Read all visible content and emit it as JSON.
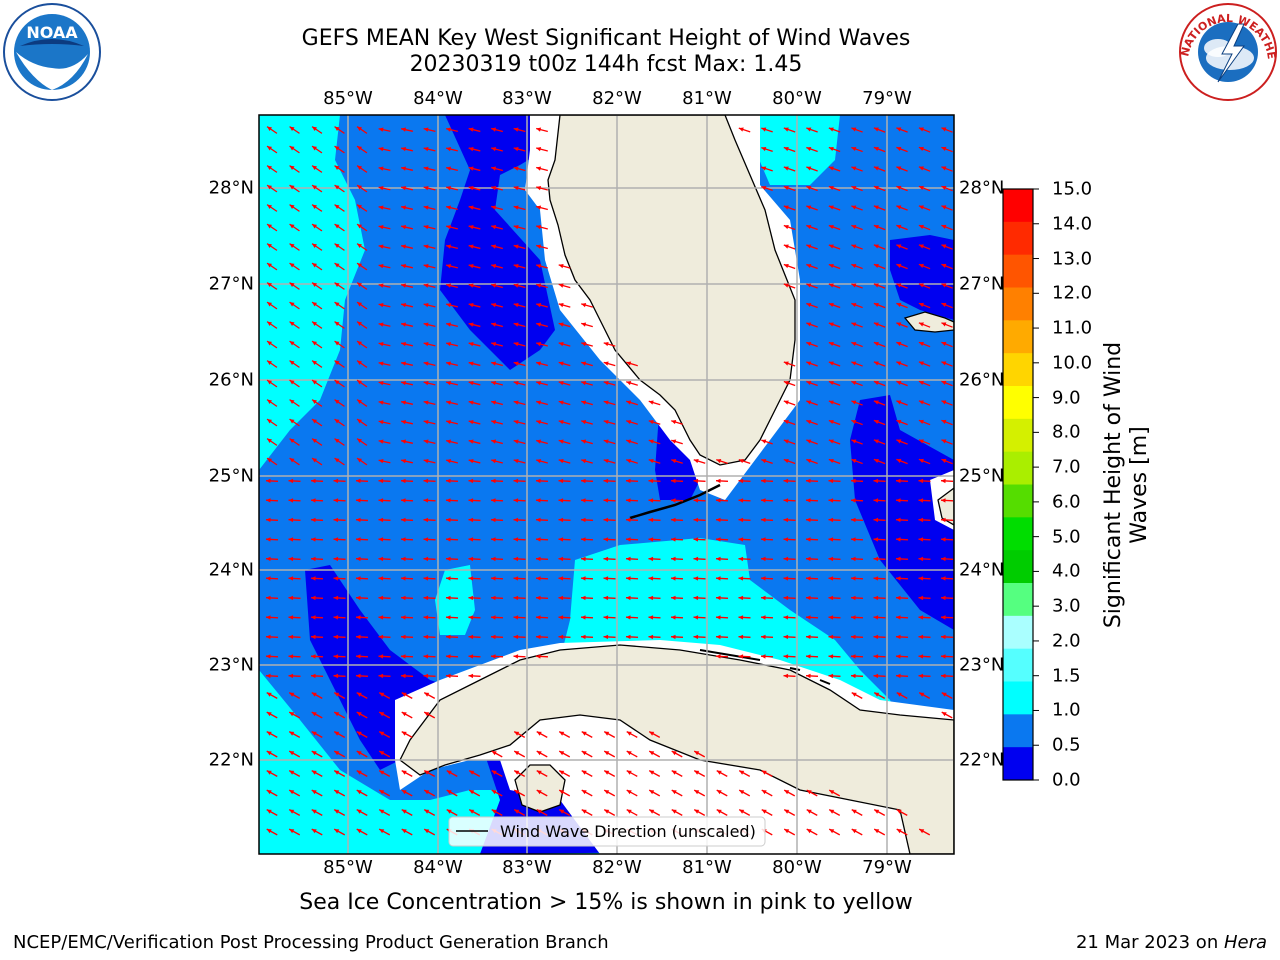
{
  "title": {
    "line1": "GEFS MEAN Key West Significant Height of Wind Waves",
    "line2": "20230319 t00z 144h fcst   Max: 1.45"
  },
  "map": {
    "lon_labels": [
      "85°W",
      "84°W",
      "83°W",
      "82°W",
      "81°W",
      "80°W",
      "79°W"
    ],
    "lat_labels": [
      "28°N",
      "27°N",
      "26°N",
      "25°N",
      "24°N",
      "23°N",
      "22°N"
    ],
    "legend_label": "Wind Wave Direction (unscaled)",
    "land_color": "#efecdc",
    "grid_color": "#b0b0b0",
    "arrow_color": "#ff0000",
    "wave_colors": {
      "0.0-0.5": "#0000f0",
      "0.5-1.0": "#0a78f0",
      "1.0-1.5": "#00ffff"
    }
  },
  "colorbar": {
    "title_line1": "Significant Height of Wind",
    "title_line2": "Waves [m]",
    "tick_labels": [
      "15.0",
      "14.0",
      "13.0",
      "12.0",
      "11.0",
      "10.0",
      "9.0",
      "8.0",
      "7.0",
      "6.0",
      "5.0",
      "4.0",
      "3.0",
      "2.0",
      "1.5",
      "1.0",
      "0.5",
      "0.0"
    ],
    "colors": [
      "#ff0000",
      "#ff2a00",
      "#ff5500",
      "#ff8000",
      "#ffaa00",
      "#ffd500",
      "#ffff00",
      "#d4f000",
      "#aaee00",
      "#55dd00",
      "#00dd00",
      "#00cc00",
      "#55ff80",
      "#aaffff",
      "#55ffff",
      "#00ffff",
      "#0a78f0",
      "#0000f0"
    ]
  },
  "logos": {
    "noaa_text": "NOAA",
    "nws_text": "NATIONAL WEATHER SERVICE"
  },
  "footer": {
    "center": "Sea Ice Concentration > 15% is shown in pink to yellow",
    "left": "NCEP/EMC/Verification Post Processing Product Generation Branch",
    "right_date": "21 Mar 2023 on ",
    "right_host": "Hera"
  }
}
